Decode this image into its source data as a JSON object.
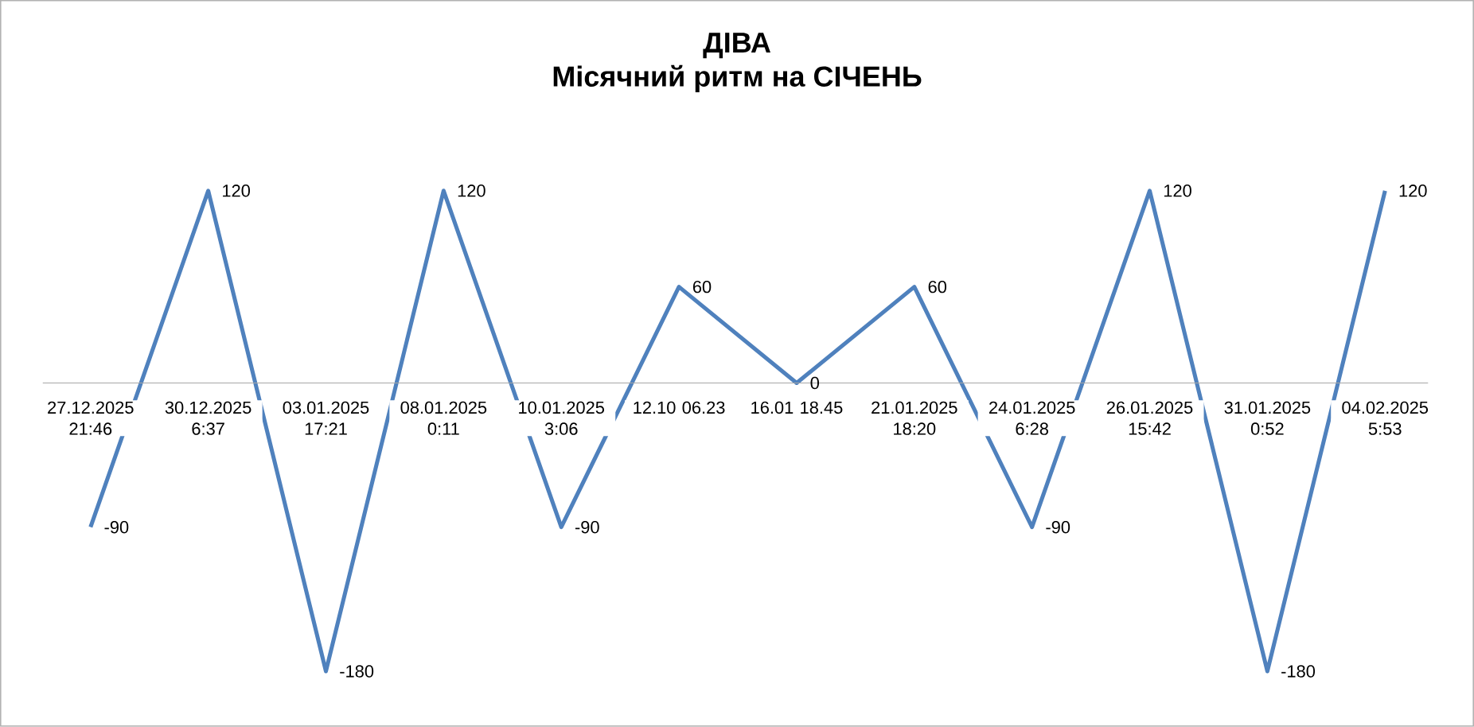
{
  "chart_data": {
    "type": "line",
    "title": "ДІВА",
    "subtitle": "Місячний ритм на СІЧЕНЬ",
    "categories": [
      "27.12.2025 21:46",
      "30.12.2025 6:37",
      "03.01.2025 17:21",
      "08.01.2025 0:11",
      "10.01.2025 3:06",
      "12.10 06.23",
      "16.01 18.45",
      "21.01.2025 18:20",
      "24.01.2025 6:28",
      "26.01.2025 15:42",
      "31.01.2025 0:52",
      "04.02.2025 5:53"
    ],
    "values": [
      -90,
      120,
      -180,
      120,
      -90,
      60,
      0,
      60,
      -90,
      120,
      -180,
      120
    ],
    "color": "#4f81bd",
    "data_labels": true
  }
}
